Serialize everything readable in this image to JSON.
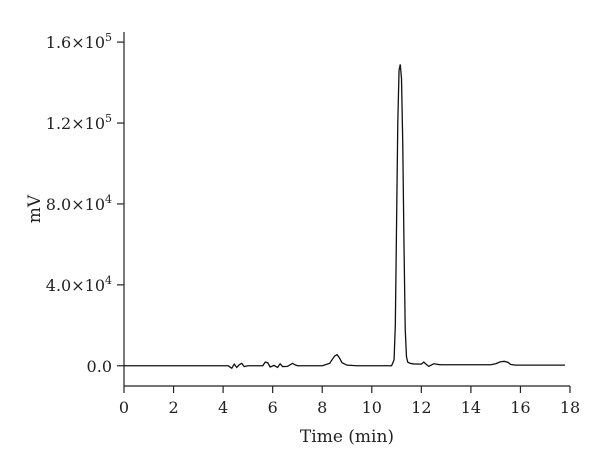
{
  "chart_data": {
    "type": "line",
    "title": "",
    "xlabel": "Time (min)",
    "ylabel": "mV",
    "xlim": [
      0,
      18
    ],
    "ylim": [
      -10000,
      165000
    ],
    "x_ticks": [
      0,
      2,
      4,
      6,
      8,
      10,
      12,
      14,
      16,
      18
    ],
    "x_tick_labels": [
      "0",
      "2",
      "4",
      "6",
      "8",
      "10",
      "12",
      "14",
      "16",
      "18"
    ],
    "y_ticks": [
      0,
      40000,
      80000,
      120000,
      160000
    ],
    "y_tick_labels": [
      {
        "mantissa": "0.0",
        "exp": ""
      },
      {
        "mantissa": "4.0×10",
        "exp": "4"
      },
      {
        "mantissa": "8.0×10",
        "exp": "4"
      },
      {
        "mantissa": "1.2×10",
        "exp": "5"
      },
      {
        "mantissa": "1.6×10",
        "exp": "5"
      }
    ],
    "grid": false,
    "legend": false,
    "series": [
      {
        "x": [
          0,
          4.2,
          4.35,
          4.45,
          4.55,
          4.65,
          4.75,
          4.85,
          5.0,
          5.6,
          5.7,
          5.8,
          5.9,
          6.05,
          6.2,
          6.3,
          6.4,
          6.6,
          6.8,
          6.9,
          7.0,
          8.0,
          8.3,
          8.5,
          8.6,
          8.7,
          8.8,
          9.0,
          9.4,
          10.0,
          10.8,
          10.9,
          10.95,
          11.0,
          11.05,
          11.1,
          11.15,
          11.2,
          11.25,
          11.3,
          11.35,
          11.4,
          11.45,
          11.55,
          11.7,
          12.0,
          12.1,
          12.2,
          12.3,
          12.5,
          12.6,
          12.7,
          12.8,
          14.8,
          15.0,
          15.2,
          15.35,
          15.5,
          15.6,
          15.8,
          17.8
        ],
        "y": [
          0,
          0,
          -1200,
          800,
          -800,
          500,
          1200,
          -400,
          0,
          0,
          1800,
          1500,
          -600,
          200,
          -800,
          1000,
          -400,
          -300,
          1200,
          500,
          0,
          0,
          1200,
          4800,
          5500,
          3800,
          1500,
          300,
          0,
          0,
          0,
          3000,
          20000,
          70000,
          120000,
          146000,
          149000,
          142000,
          110000,
          60000,
          18000,
          4500,
          1800,
          1200,
          900,
          800,
          1800,
          700,
          -300,
          1000,
          800,
          600,
          500,
          500,
          1000,
          2000,
          2200,
          1700,
          700,
          300,
          300
        ]
      }
    ]
  }
}
